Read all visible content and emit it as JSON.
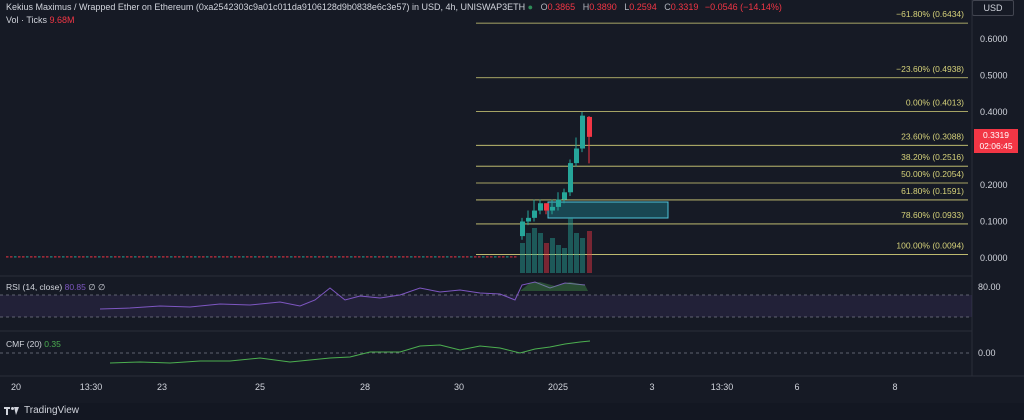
{
  "header": {
    "title": "Kekius Maximus / Wrapped Ether on Ethereum (0xa2542303c9a01c011da9106128d9b0838e6c3e57) in USD, 4h, UNISWAP3ETH",
    "open_label": "O",
    "open": "0.3865",
    "high_label": "H",
    "high": "0.3890",
    "low_label": "L",
    "low": "0.2594",
    "close_label": "C",
    "close": "0.3319",
    "change": "−0.0546 (−14.14%)",
    "vol_label": "Vol · Ticks",
    "vol_value": "9.68M",
    "currency_button": "USD"
  },
  "price_label": {
    "price": "0.3319",
    "countdown": "02:06:45"
  },
  "price_axis": [
    "0.6000",
    "0.5000",
    "0.4000",
    "0.3000",
    "0.2000",
    "0.1000",
    "0.0000"
  ],
  "fib_levels": [
    {
      "label": "−61.80% (0.6434)",
      "value": 0.6434
    },
    {
      "label": "−23.60% (0.4938)",
      "value": 0.4938
    },
    {
      "label": "0.00% (0.4013)",
      "value": 0.4013
    },
    {
      "label": "23.60% (0.3088)",
      "value": 0.3088
    },
    {
      "label": "38.20% (0.2516)",
      "value": 0.2516
    },
    {
      "label": "50.00% (0.2054)",
      "value": 0.2054
    },
    {
      "label": "61.80% (0.1591)",
      "value": 0.1591
    },
    {
      "label": "78.60% (0.0933)",
      "value": 0.0933
    },
    {
      "label": "100.00% (0.0094)",
      "value": 0.0094
    }
  ],
  "rsi": {
    "label": "RSI (14, close)",
    "value": "80.85",
    "extra1": "∅",
    "extra2": "∅",
    "axis": "80.00"
  },
  "cmf": {
    "label": "CMF (20)",
    "value": "0.35",
    "axis": "0.00"
  },
  "time_axis": [
    "20",
    "13:30",
    "23",
    "25",
    "28",
    "30",
    "2025",
    "3",
    "13:30",
    "6",
    "8"
  ],
  "footer": {
    "brand": "TradingView"
  },
  "colors": {
    "up": "#26a69a",
    "down": "#f23645",
    "fib": "#d6d27a",
    "rsi": "#7e57c2",
    "cmf": "#4caf50"
  }
}
